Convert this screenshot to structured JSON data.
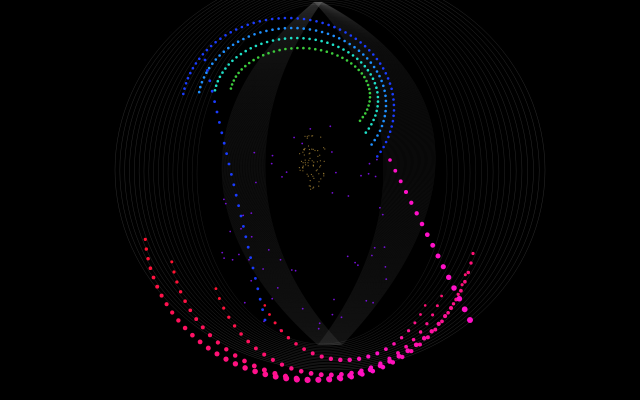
{
  "scene": {
    "background": "#000000",
    "wireframe_color": "#8a8a8a",
    "core_dust_color": "#c8a040",
    "palette": {
      "outer_ring": "#ff1230",
      "outer_mid": "#ff10c8",
      "inner_violet": "#8a12ff",
      "spiral_blue": "#1a3cff",
      "spiral_azure": "#1e90ff",
      "spiral_teal": "#1ee0c8",
      "spiral_green": "#3ccc3c"
    }
  }
}
